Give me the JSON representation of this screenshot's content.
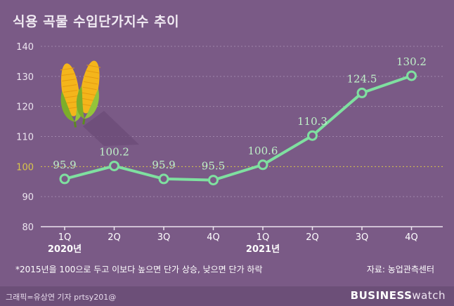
{
  "title": "식용 곡물 수입단가지수 추이",
  "footnote": "*2015년을 100으로 두고 이보다 높으면 단가 상승, 낮으면 단가 하락",
  "source": "자료: 농업관측센터",
  "footer": {
    "credit": "그래픽=유상연 기자 prtsy201@",
    "brand_bold": "BUSINESS",
    "brand_light": "watch"
  },
  "colors": {
    "background": "#7a5a86",
    "line": "#7fe0a0",
    "labels": "#bff0c8",
    "baseline": "#d9c64a"
  },
  "icon": "corn-icon",
  "chart_data": {
    "type": "line",
    "categories": [
      "1Q",
      "2Q",
      "3Q",
      "4Q",
      "1Q",
      "2Q",
      "3Q",
      "4Q"
    ],
    "year_labels": [
      "2020년",
      "",
      "",
      "",
      "2021년",
      "",
      "",
      ""
    ],
    "values": [
      95.9,
      100.2,
      95.9,
      95.5,
      100.6,
      110.3,
      124.5,
      130.2
    ],
    "value_labels": [
      "95.9",
      "100.2",
      "95.9",
      "95.5",
      "100.6",
      "110.3",
      "124.5",
      "130.2"
    ],
    "yticks": [
      80,
      90,
      100,
      110,
      120,
      130,
      140
    ],
    "ylim": [
      80,
      140
    ],
    "highlight_line": 100,
    "grid": true
  }
}
